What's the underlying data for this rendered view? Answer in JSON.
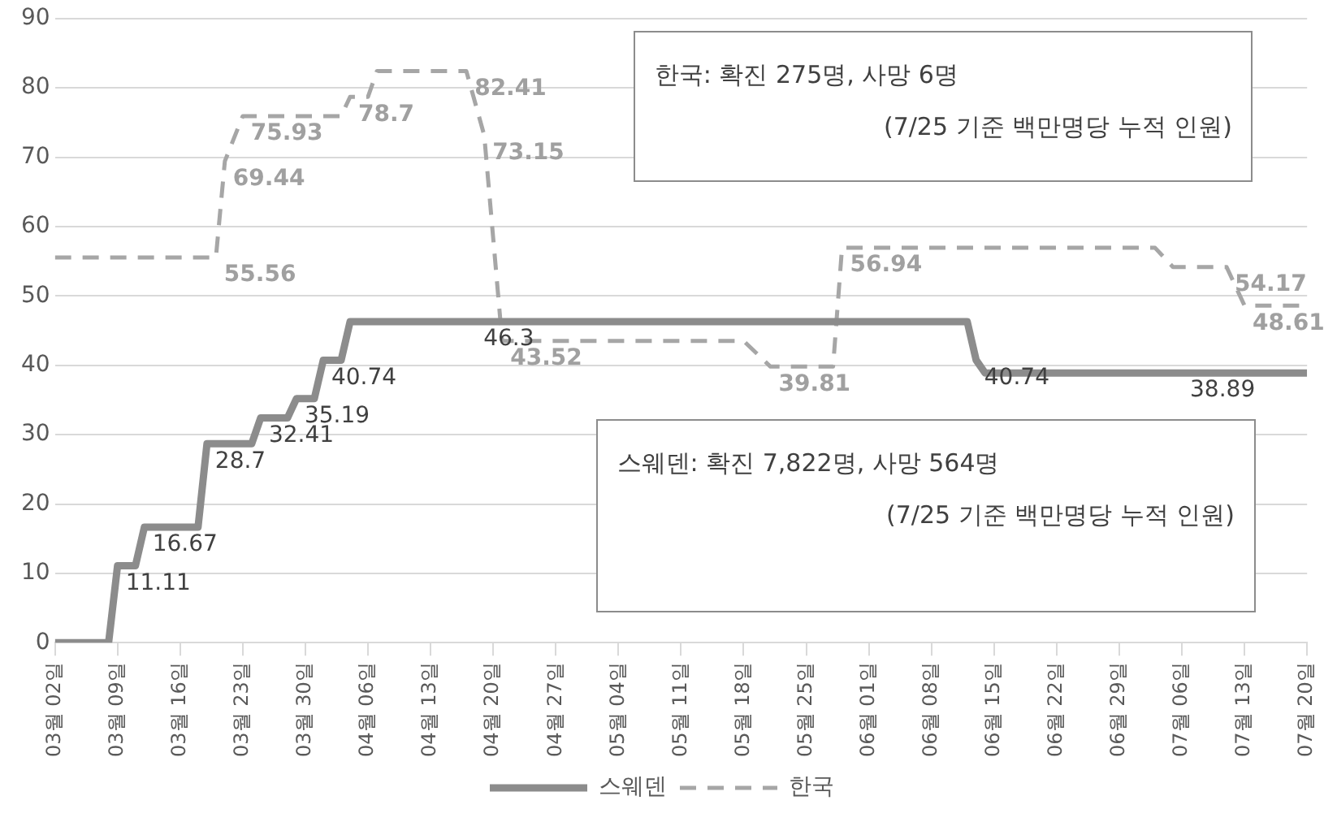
{
  "chart_data": {
    "type": "line",
    "xlim": [
      "--03-02",
      "--07-20"
    ],
    "xticks": [
      {
        "value": "--03-02",
        "label": "03월 02일"
      },
      {
        "value": "--03-09",
        "label": "03월 09일"
      },
      {
        "value": "--03-16",
        "label": "03월 16일"
      },
      {
        "value": "--03-23",
        "label": "03월 23일"
      },
      {
        "value": "--03-30",
        "label": "03월 30일"
      },
      {
        "value": "--04-06",
        "label": "04월 06일"
      },
      {
        "value": "--04-13",
        "label": "04월 13일"
      },
      {
        "value": "--04-20",
        "label": "04월 20일"
      },
      {
        "value": "--04-27",
        "label": "04월 27일"
      },
      {
        "value": "--05-04",
        "label": "05월 04일"
      },
      {
        "value": "--05-11",
        "label": "05월 11일"
      },
      {
        "value": "--05-18",
        "label": "05월 18일"
      },
      {
        "value": "--05-25",
        "label": "05월 25일"
      },
      {
        "value": "--06-01",
        "label": "06월 01일"
      },
      {
        "value": "--06-08",
        "label": "06월 08일"
      },
      {
        "value": "--06-15",
        "label": "06월 15일"
      },
      {
        "value": "--06-22",
        "label": "06월 22일"
      },
      {
        "value": "--06-29",
        "label": "06월 29일"
      },
      {
        "value": "--07-06",
        "label": "07월 06일"
      },
      {
        "value": "--07-13",
        "label": "07월 13일"
      },
      {
        "value": "--07-20",
        "label": "07월 20일"
      }
    ],
    "ylim": [
      0,
      90
    ],
    "yticks": [
      0,
      10,
      20,
      30,
      40,
      50,
      60,
      70,
      80,
      90
    ],
    "grid": "y",
    "legend": "bottom",
    "marker": "none",
    "series": [
      {
        "name": "스웨덴",
        "color": "#8c8c8c",
        "line_style": "solid",
        "x": [
          "--03-02",
          "--03-08",
          "--03-09",
          "--03-11",
          "--03-12",
          "--03-18",
          "--03-19",
          "--03-24",
          "--03-25",
          "--03-28",
          "--03-29",
          "--03-31",
          "--04-01",
          "--04-03",
          "--04-04",
          "--04-18",
          "--06-12",
          "--06-13",
          "--06-14",
          "--07-06",
          "--07-20"
        ],
        "values": [
          0,
          0,
          11.11,
          11.11,
          16.67,
          16.67,
          28.7,
          28.7,
          32.41,
          32.41,
          35.19,
          35.19,
          40.74,
          40.74,
          46.3,
          46.3,
          46.3,
          40.74,
          38.89,
          38.89,
          38.89
        ],
        "value_labels": [
          null,
          null,
          "11.11",
          null,
          "16.67",
          null,
          "28.7",
          null,
          "32.41",
          null,
          "35.19",
          null,
          "40.74",
          null,
          null,
          "46.3",
          null,
          "40.74",
          null,
          "38.89",
          null
        ]
      },
      {
        "name": "한국",
        "color": "#a6a6a6",
        "line_style": "dashed",
        "x": [
          "--03-02",
          "--03-20",
          "--03-21",
          "--03-23",
          "--04-03",
          "--04-04",
          "--04-06",
          "--04-07",
          "--04-17",
          "--04-19",
          "--04-21",
          "--05-18",
          "--05-21",
          "--05-28",
          "--05-29",
          "--07-03",
          "--07-05",
          "--07-11",
          "--07-13",
          "--07-20"
        ],
        "values": [
          55.56,
          55.56,
          69.44,
          75.93,
          75.93,
          78.7,
          78.7,
          82.41,
          82.41,
          73.15,
          43.52,
          43.52,
          39.81,
          39.81,
          56.94,
          56.94,
          54.17,
          54.17,
          48.61,
          48.61
        ],
        "value_labels": [
          null,
          "55.56",
          "69.44",
          "75.93",
          null,
          "78.7",
          null,
          null,
          "82.41",
          "73.15",
          "43.52",
          null,
          "39.81",
          null,
          "56.94",
          null,
          null,
          "54.17",
          "48.61",
          null
        ]
      }
    ],
    "annotations": [
      "한국: 확진 275명, 사망 6명\n(7/25 기준 백만명당 누적 인원)",
      "스웨덴: 확진 7,822명, 사망 564명\n(7/25 기준 백만명당 누적 인원)"
    ]
  }
}
